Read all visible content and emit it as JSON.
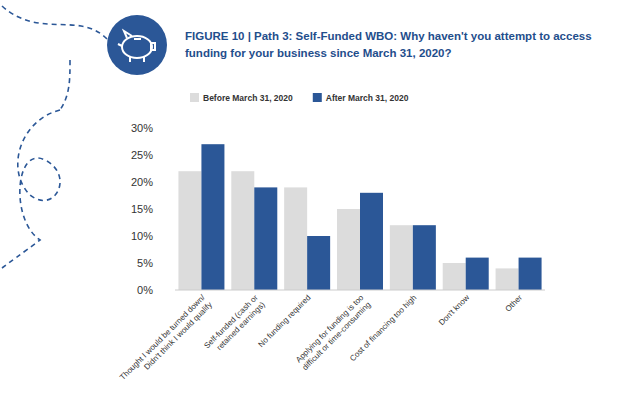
{
  "chart_data": {
    "type": "bar",
    "title": "FIGURE 10 | Path 3: Self-Funded WBO: Why haven't you attempt to access funding for your business since March 31, 2020?",
    "categories": [
      "Thought I would be turned down/ Didn't think I would qualify",
      "Self-funded (cash or retained earnings)",
      "No funding required",
      "Applying for funding is too difficult or time-consuming",
      "Cost of financing too high",
      "Don't know",
      "Other"
    ],
    "series": [
      {
        "name": "Before March 31, 2020",
        "color": "#dcdcdc",
        "values": [
          22,
          22,
          19,
          15,
          12,
          5,
          4
        ]
      },
      {
        "name": "After March 31, 2020",
        "color": "#2b5797",
        "values": [
          27,
          19,
          10,
          18,
          12,
          6,
          6
        ]
      }
    ],
    "ylim": [
      0,
      30
    ],
    "yticks": [
      {
        "value": 0,
        "label": "0%"
      },
      {
        "value": 5,
        "label": "5%"
      },
      {
        "value": 10,
        "label": "10%"
      },
      {
        "value": 15,
        "label": "15%"
      },
      {
        "value": 20,
        "label": "20%"
      },
      {
        "value": 25,
        "label": "25%"
      },
      {
        "value": 30,
        "label": "30%"
      }
    ],
    "grid": false,
    "legend": "top-left"
  }
}
